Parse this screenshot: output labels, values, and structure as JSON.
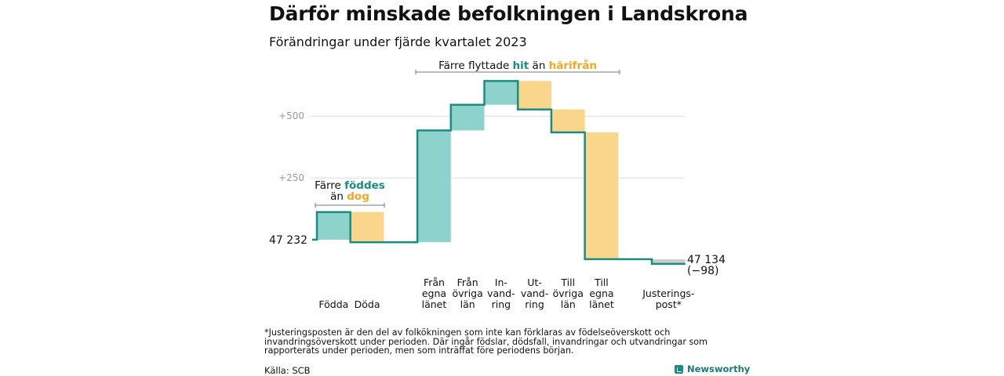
{
  "title": "Därför minskade befolkningen i Landskrona",
  "subtitle": "Förändringar under fjärde kvartalet 2023",
  "colors": {
    "increase": "#8dd3cc",
    "decrease": "#fad58c",
    "adjust": "#cccccc",
    "line": "#1a8c80",
    "teal_text": "#1a8c80",
    "orange_text": "#f5a623"
  },
  "chart_data": {
    "type": "waterfall",
    "start_value": 47232,
    "start_label": "47  232",
    "end_value": 47134,
    "end_label": "47 134",
    "change_label": "(−98)",
    "y_ticks": [
      "+500",
      "+250"
    ],
    "steps": [
      {
        "label": "Födda",
        "change": 112,
        "kind": "increase"
      },
      {
        "label": "Döda",
        "change": -122,
        "kind": "decrease"
      },
      {
        "label": "",
        "change": 0,
        "kind": "gap"
      },
      {
        "label": "Från egna länet",
        "change": 452,
        "kind": "increase"
      },
      {
        "label": "Från övriga län",
        "change": 104,
        "kind": "increase"
      },
      {
        "label": "In-vand-ring",
        "change": 96,
        "kind": "increase"
      },
      {
        "label": "Ut-vand-ring",
        "change": -115,
        "kind": "decrease"
      },
      {
        "label": "Till övriga län",
        "change": -93,
        "kind": "decrease"
      },
      {
        "label": "Till egna länet",
        "change": -513,
        "kind": "decrease"
      },
      {
        "label": "",
        "change": 0,
        "kind": "gap"
      },
      {
        "label": "Justerings-post*",
        "change": -19,
        "kind": "adjust"
      }
    ],
    "category_labels": [
      {
        "lines": [
          "Födda"
        ]
      },
      {
        "lines": [
          "Döda"
        ]
      },
      {
        "lines": [
          "Från",
          "egna",
          "länet"
        ]
      },
      {
        "lines": [
          "Från",
          "övriga",
          "län"
        ]
      },
      {
        "lines": [
          "In-",
          "vand-",
          "ring"
        ]
      },
      {
        "lines": [
          "Ut-",
          "vand-",
          "ring"
        ]
      },
      {
        "lines": [
          "Till",
          "övriga",
          "län"
        ]
      },
      {
        "lines": [
          "Till",
          "egna",
          "länet"
        ]
      },
      {
        "lines": [
          "Justerings-",
          "post*"
        ]
      }
    ],
    "annotations": {
      "left": {
        "prefix": "Färre",
        "hit": "föddes",
        "mid": "än",
        "away": "dog"
      },
      "right": {
        "prefix": "Färre flyttade",
        "hit": "hit",
        "mid": "än",
        "away": "härifrån"
      }
    }
  },
  "footnote": "*Justeringsposten är den del av folkökningen som inte kan förklaras av födelseöverskott och invandringsöverskott under perioden. Där ingår födslar, dödsfall, invandringar och utvandringar som rapporterats under perioden, men som inträffat före periodens början.",
  "source": "Källa: SCB",
  "brand": "Newsworthy"
}
